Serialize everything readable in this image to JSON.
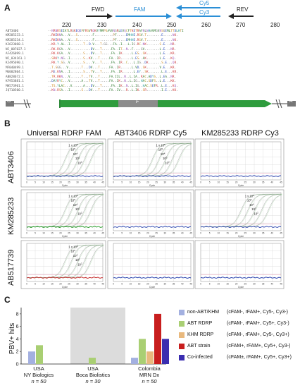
{
  "panelA": {
    "letter": "A",
    "positions": [
      "220",
      "230",
      "240",
      "250",
      "260",
      "270",
      "280"
    ],
    "primers": {
      "fwd": "FWD",
      "fam": "FAM",
      "cy5": "Cy5",
      "cy3": "Cy3",
      "rev": "REV"
    },
    "ref_name": "ABT3406",
    "ref_seq": "--NRNRSEIATLRGKEQEPFRSVRQKVYMMPSAVVNGRLEVQCFTKETRAFNLNHAVMGVNSGEMLTTDLHTI",
    "seq_names": [
      "KM285233.1",
      "KM285234.1",
      "KJ623060.1",
      "NC_007027.1",
      "AF426099.1",
      "NC_034161.1",
      "KJ495690.1",
      "MF040499.1",
      "MG002804.1",
      "AB828672.1",
      "KF953881.1",
      "MH573901.1",
      "JQ710500.1"
    ],
    "seq_rows": [
      "..RKEKNA...V...S........F..........PF.....EMHHE.RSV.T........E.....NK.",
      "..RKEKNA...V...S........F..........PF.....EMHHE.RSV.T........E.....NK.",
      "..KR.Y.AL..I.......T..D.V...T.GG...FA..I...L.IG.RC.NK.......S.E...NR.",
      "..RK.RGA...V...........DV...T.....FA..IT..N..F....GV........L.E...NR.",
      "..RK.KGA...V.......S...DV...T.....FA..IK.....L.ES..SK.......L.E...KR.",
      "..SRKY.NG..I.......S..KV...T.....FA..IR......L.ES..AK.......L.E...KQ.",
      "..RK.Y.SG..V.......S....V...T.....FA..IR..C...L.IG..DK.......S.E...QR.",
      "..T.SGG...V.......T...DV...T.....FA..IR......L.VD..SK.......V.E...KR.",
      "..RE.KNA...I.......S...TV...T.....FA..IR......L.EY..SK.......L.E...KR.",
      "..TR.RKN...V......T...TV...T.....FA.IIL..N..L.IA..RAC.ADYS..L.EA..NR.",
      "..DAYRYC...V......A...TV...T.....FA..IK..N..L.IG..HAC.SDFS..L.E...KK.",
      "..TS.YLAC...V......A...DV...T.....FA..IK..N..L.IG..HAC.SEFR..L.E...KQ.",
      "..KN.RSA...I......S...DV...T.....FA..IV...R..L.IK..SR........I.E...KK."
    ],
    "genome": {
      "left_block": "G",
      "middle_block": "F",
      "right_block": "A"
    }
  },
  "panelB": {
    "letter": "B",
    "columns": [
      "Universal RDRP FAM",
      "ABT3406 RDRP Cy5",
      "KM285233 RDRP Cy3"
    ],
    "rows": [
      "ABT3406",
      "KM285233",
      "AB517739"
    ],
    "dilution_labels": [
      "1 x 10",
      "10",
      "10",
      "10",
      "10"
    ],
    "dilution_exponents": [
      "6",
      "5",
      "4",
      "3",
      "2"
    ],
    "x_axis": "Cycle",
    "x_ticks": [
      "0",
      "5",
      "10",
      "15",
      "20",
      "25",
      "30",
      "35",
      "40",
      "45"
    ],
    "amplification_shown": [
      [
        true,
        true,
        false
      ],
      [
        true,
        false,
        true
      ],
      [
        true,
        false,
        false
      ]
    ],
    "colors": {
      "blue": "#3048b0",
      "green": "#2a9c2a",
      "red": "#c83030",
      "grid": "#d8d8d8",
      "curve": "#9a9a9a"
    }
  },
  "panelC": {
    "letter": "C",
    "ylabel": "PBV+ hits",
    "yticks": [
      "0",
      "2",
      "4",
      "6",
      "8"
    ],
    "groups": [
      {
        "lines": [
          "USA",
          "NY Biologics"
        ],
        "n": "n = 50"
      },
      {
        "lines": [
          "USA",
          "Boca Biolistics"
        ],
        "n": "n = 30"
      },
      {
        "lines": [
          "Colombia",
          "MRN Dx"
        ],
        "n": "n = 50"
      }
    ],
    "legend": [
      {
        "name": "non-ABT/KHM",
        "desc": "(cFAM-, rFAM+, Cy5-, Cy3-)",
        "color": "#a3b0e0"
      },
      {
        "name": "ABT RDRP",
        "desc": "(cFAM-, rFAM+, Cy5+, Cy3-)",
        "color": "#a9cf73"
      },
      {
        "name": "KHM RDRP",
        "desc": "(cFAM-, rFAM+, Cy5-, Cy3+)",
        "color": "#e9b97e"
      },
      {
        "name": "ABT strain",
        "desc": "(cFAM+, rFAM+, Cy5+, Cy3-)",
        "color": "#c81e1e"
      },
      {
        "name": "Co-infected",
        "desc": "(cFAM±, rFAM+, Cy5+, Cy3+)",
        "color": "#3a2db0"
      }
    ],
    "chart_data": {
      "type": "bar",
      "categories": [
        "USA NY Biologics",
        "USA Boca Biolistics",
        "Colombia MRN Dx"
      ],
      "series": [
        {
          "name": "non-ABT/KHM",
          "values": [
            2,
            0,
            1
          ]
        },
        {
          "name": "ABT RDRP",
          "values": [
            3,
            1,
            4
          ]
        },
        {
          "name": "KHM RDRP",
          "values": [
            0,
            0,
            2
          ]
        },
        {
          "name": "ABT strain",
          "values": [
            0,
            0,
            8
          ]
        },
        {
          "name": "Co-infected",
          "values": [
            0,
            0,
            4
          ]
        }
      ],
      "ylabel": "PBV+ hits",
      "ylim": [
        0,
        9
      ],
      "highlighted_group": "USA Boca Biolistics"
    }
  }
}
